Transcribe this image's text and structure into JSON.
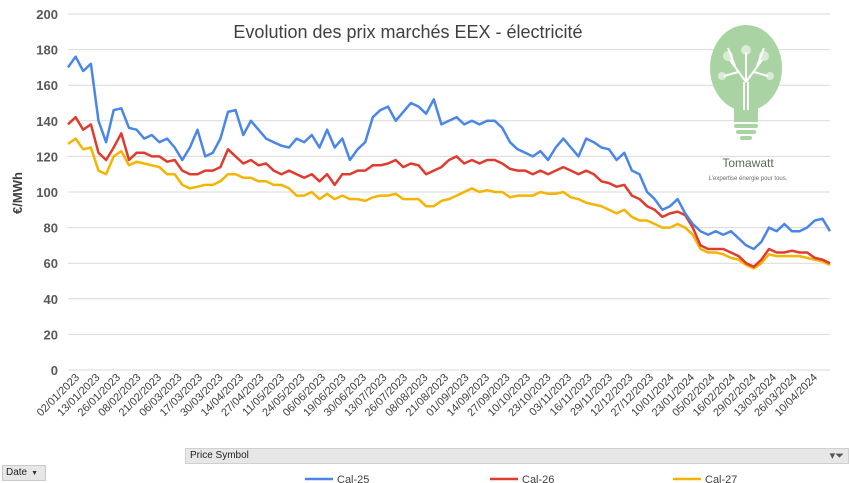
{
  "chart_data": {
    "type": "line",
    "title": "Evolution des prix marchés EEX - électricité",
    "ylabel": "€/MWh",
    "xlabel": "",
    "ylim": [
      0,
      200
    ],
    "yticks": [
      0,
      20,
      40,
      60,
      80,
      100,
      120,
      140,
      160,
      180,
      200
    ],
    "grid": true,
    "legend_position": "bottom",
    "x_tick_labels": [
      "02/01/2023",
      "13/01/2023",
      "26/01/2023",
      "08/02/2023",
      "21/02/2023",
      "06/03/2023",
      "17/03/2023",
      "30/03/2023",
      "14/04/2023",
      "27/04/2023",
      "11/05/2023",
      "24/05/2023",
      "06/06/2023",
      "19/06/2023",
      "30/06/2023",
      "13/07/2023",
      "26/07/2023",
      "08/08/2023",
      "21/08/2023",
      "01/09/2023",
      "14/09/2023",
      "27/09/2023",
      "10/10/2023",
      "23/10/2023",
      "03/11/2023",
      "16/11/2023",
      "29/11/2023",
      "12/12/2023",
      "27/12/2023",
      "10/01/2024",
      "23/01/2024",
      "05/02/2024",
      "16/02/2024",
      "29/02/2024",
      "13/03/2024",
      "26/03/2024",
      "10/04/2024"
    ],
    "series": [
      {
        "name": "Cal-25",
        "color": "#4a86e8",
        "values": [
          170,
          176,
          168,
          172,
          140,
          128,
          146,
          147,
          136,
          135,
          130,
          132,
          128,
          130,
          125,
          118,
          125,
          135,
          120,
          122,
          130,
          145,
          146,
          132,
          140,
          135,
          130,
          128,
          126,
          125,
          130,
          128,
          132,
          125,
          135,
          125,
          130,
          118,
          124,
          128,
          142,
          146,
          148,
          140,
          145,
          150,
          148,
          144,
          152,
          138,
          140,
          142,
          138,
          140,
          138,
          140,
          140,
          136,
          128,
          124,
          122,
          120,
          123,
          118,
          125,
          130,
          125,
          120,
          130,
          128,
          125,
          124,
          118,
          122,
          112,
          110,
          100,
          96,
          90,
          92,
          96,
          88,
          82,
          78,
          76,
          78,
          76,
          78,
          74,
          70,
          68,
          72,
          80,
          78,
          82,
          78,
          78,
          80,
          84,
          85,
          78
        ]
      },
      {
        "name": "Cal-26",
        "color": "#e03b2f",
        "values": [
          138,
          142,
          135,
          138,
          122,
          118,
          125,
          133,
          118,
          122,
          122,
          120,
          120,
          117,
          118,
          112,
          110,
          110,
          112,
          112,
          114,
          124,
          120,
          116,
          118,
          115,
          116,
          112,
          110,
          112,
          110,
          108,
          110,
          106,
          110,
          104,
          110,
          110,
          112,
          112,
          115,
          115,
          116,
          118,
          114,
          116,
          115,
          110,
          112,
          114,
          118,
          120,
          116,
          118,
          116,
          118,
          118,
          116,
          113,
          112,
          112,
          110,
          112,
          110,
          112,
          114,
          112,
          110,
          112,
          110,
          106,
          105,
          103,
          104,
          98,
          96,
          92,
          90,
          86,
          88,
          89,
          87,
          80,
          70,
          68,
          68,
          68,
          66,
          64,
          60,
          58,
          62,
          68,
          66,
          66,
          67,
          66,
          66,
          63,
          62,
          60
        ]
      },
      {
        "name": "Cal-27",
        "color": "#f4b400",
        "values": [
          127,
          130,
          124,
          125,
          112,
          110,
          120,
          123,
          115,
          117,
          116,
          115,
          114,
          110,
          110,
          104,
          102,
          103,
          104,
          104,
          106,
          110,
          110,
          108,
          108,
          106,
          106,
          104,
          104,
          102,
          98,
          98,
          100,
          96,
          99,
          96,
          98,
          96,
          96,
          95,
          97,
          98,
          98,
          99,
          96,
          96,
          96,
          92,
          92,
          95,
          96,
          98,
          100,
          102,
          100,
          101,
          100,
          100,
          97,
          98,
          98,
          98,
          100,
          99,
          99,
          100,
          97,
          96,
          94,
          93,
          92,
          90,
          88,
          90,
          86,
          84,
          84,
          82,
          80,
          80,
          82,
          80,
          76,
          68,
          66,
          66,
          65,
          63,
          62,
          59,
          57,
          60,
          65,
          64,
          64,
          64,
          64,
          63,
          62,
          61,
          59
        ]
      }
    ]
  },
  "logo": {
    "brand_name": "Tomawatt",
    "tagline": "L'expertise énergie pour tous."
  },
  "controls": {
    "date_button_label": "Date",
    "price_symbol_label": "Price Symbol"
  },
  "icons": {
    "date_button": "dropdown-arrow-icon",
    "price_symbol": "filter-icon"
  }
}
